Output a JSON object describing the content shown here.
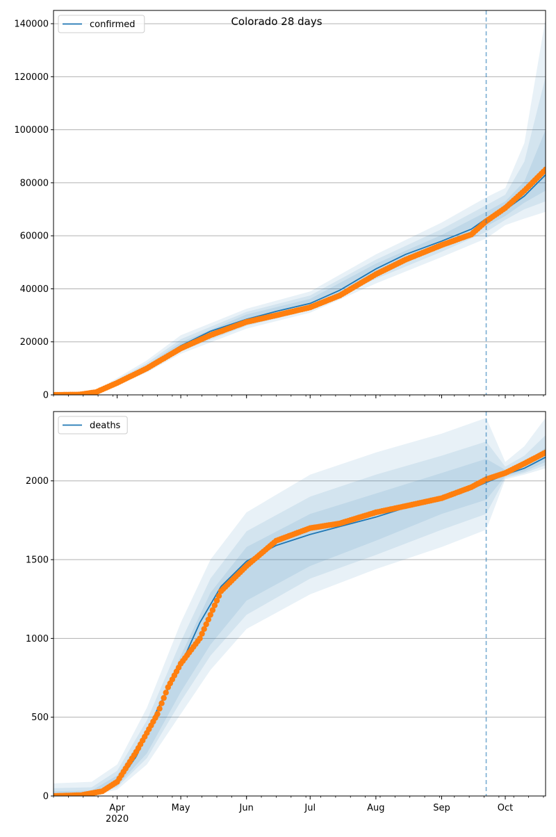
{
  "figure": {
    "title": "Colorado 28 days",
    "forecast_marker_date": "2020-09-22",
    "colors": {
      "model_line": "#1f77b4",
      "observed": "#ff7f0e",
      "band": "#1f77b4",
      "grid": "#b0b0b0"
    }
  },
  "chart_data": [
    {
      "type": "line",
      "panel": "top",
      "legend": "confirmed",
      "legend_placement": "upper-left",
      "grid": "horizontal",
      "ylim": [
        0,
        145000
      ],
      "yticks": [
        0,
        20000,
        40000,
        60000,
        80000,
        100000,
        120000,
        140000
      ],
      "ytick_labels": [
        "0",
        "20000",
        "40000",
        "60000",
        "80000",
        "100000",
        "120000",
        "140000"
      ],
      "xlim": [
        "2020-03-02",
        "2020-10-20"
      ],
      "xtick_dates": [
        "2020-04-01",
        "2020-05-01",
        "2020-06-01",
        "2020-07-01",
        "2020-08-01",
        "2020-09-01",
        "2020-10-01"
      ],
      "series": [
        {
          "name": "confirmed",
          "kind": "model",
          "x": [
            "2020-03-02",
            "2020-03-14",
            "2020-03-22",
            "2020-04-01",
            "2020-04-15",
            "2020-05-01",
            "2020-05-15",
            "2020-06-01",
            "2020-06-15",
            "2020-07-01",
            "2020-07-15",
            "2020-08-01",
            "2020-08-15",
            "2020-09-01",
            "2020-09-15",
            "2020-09-22",
            "2020-10-01",
            "2020-10-10",
            "2020-10-20"
          ],
          "y": [
            0,
            100,
            1000,
            4500,
            10500,
            18500,
            24000,
            28500,
            31500,
            34500,
            39500,
            47500,
            53000,
            58000,
            62500,
            66500,
            69800,
            75000,
            83000
          ]
        },
        {
          "name": "observed",
          "kind": "points",
          "x": [
            "2020-03-02",
            "2020-03-14",
            "2020-03-22",
            "2020-04-01",
            "2020-04-15",
            "2020-05-01",
            "2020-05-15",
            "2020-06-01",
            "2020-06-15",
            "2020-07-01",
            "2020-07-15",
            "2020-08-01",
            "2020-08-15",
            "2020-09-01",
            "2020-09-15",
            "2020-09-22",
            "2020-10-01",
            "2020-10-10",
            "2020-10-20"
          ],
          "y": [
            0,
            100,
            1000,
            4500,
            10000,
            17500,
            22500,
            27500,
            30000,
            33000,
            37500,
            45500,
            51000,
            56500,
            60500,
            65500,
            70500,
            77000,
            85000
          ]
        }
      ],
      "bands": {
        "x": [
          "2020-03-02",
          "2020-03-22",
          "2020-04-15",
          "2020-05-01",
          "2020-06-01",
          "2020-07-01",
          "2020-08-01",
          "2020-09-01",
          "2020-09-22",
          "2020-10-01",
          "2020-10-10",
          "2020-10-20"
        ],
        "levels": [
          {
            "lower": [
              0,
              500,
              8500,
              15500,
              25000,
              31000,
              42000,
              52000,
              59000,
              64000,
              66500,
              69000
            ],
            "upper": [
              200,
              1600,
              13000,
              22500,
              32500,
              39000,
              53000,
              65000,
              74500,
              78000,
              95000,
              142000
            ]
          },
          {
            "lower": [
              0,
              700,
              9300,
              16500,
              26000,
              32000,
              43800,
              54000,
              61500,
              66000,
              70000,
              73000
            ],
            "upper": [
              150,
              1400,
              12000,
              21000,
              31300,
              37500,
              51000,
              62500,
              71500,
              75500,
              88000,
              120000
            ]
          },
          {
            "lower": [
              0,
              850,
              9900,
              17500,
              27000,
              33000,
              45500,
              56000,
              63500,
              67500,
              72500,
              77000
            ],
            "upper": [
              120,
              1200,
              11200,
              19800,
              30300,
              36200,
              49500,
              60300,
              69000,
              73000,
              80500,
              100000
            ]
          }
        ]
      }
    },
    {
      "type": "line",
      "panel": "bottom",
      "legend": "deaths",
      "legend_placement": "upper-left",
      "grid": "horizontal",
      "ylim": [
        0,
        2440
      ],
      "yticks": [
        0,
        500,
        1000,
        1500,
        2000
      ],
      "ytick_labels": [
        "0",
        "500",
        "1000",
        "1500",
        "2000"
      ],
      "xlim": [
        "2020-03-02",
        "2020-10-20"
      ],
      "xtick_dates": [
        "2020-04-01",
        "2020-05-01",
        "2020-06-01",
        "2020-07-01",
        "2020-08-01",
        "2020-09-01",
        "2020-10-01"
      ],
      "xtick_labels": [
        "Apr",
        "May",
        "Jun",
        "Jul",
        "Aug",
        "Sep",
        "Oct"
      ],
      "xtick_sublabels": [
        "2020",
        "",
        "",
        "",
        "",
        "",
        ""
      ],
      "series": [
        {
          "name": "deaths",
          "kind": "model",
          "x": [
            "2020-03-02",
            "2020-03-15",
            "2020-03-25",
            "2020-04-01",
            "2020-04-10",
            "2020-04-20",
            "2020-05-01",
            "2020-05-10",
            "2020-05-20",
            "2020-06-01",
            "2020-06-15",
            "2020-07-01",
            "2020-07-15",
            "2020-08-01",
            "2020-08-15",
            "2020-09-01",
            "2020-09-15",
            "2020-09-22",
            "2020-10-01",
            "2020-10-10",
            "2020-10-20"
          ],
          "y": [
            0,
            5,
            20,
            80,
            250,
            550,
            830,
            1100,
            1330,
            1490,
            1590,
            1660,
            1710,
            1770,
            1830,
            1890,
            1950,
            1990,
            2040,
            2080,
            2150
          ]
        },
        {
          "name": "observed",
          "kind": "points",
          "x": [
            "2020-03-02",
            "2020-03-15",
            "2020-03-25",
            "2020-04-01",
            "2020-04-10",
            "2020-04-20",
            "2020-04-25",
            "2020-05-01",
            "2020-05-10",
            "2020-05-20",
            "2020-06-01",
            "2020-06-15",
            "2020-07-01",
            "2020-07-15",
            "2020-08-01",
            "2020-08-15",
            "2020-09-01",
            "2020-09-15",
            "2020-09-22",
            "2020-10-01",
            "2020-10-10",
            "2020-10-20"
          ],
          "y": [
            0,
            5,
            30,
            90,
            280,
            520,
            690,
            840,
            1000,
            1300,
            1460,
            1620,
            1700,
            1730,
            1800,
            1840,
            1890,
            1960,
            2010,
            2050,
            2110,
            2180
          ]
        }
      ],
      "bands": {
        "x": [
          "2020-03-02",
          "2020-03-20",
          "2020-04-01",
          "2020-04-15",
          "2020-05-01",
          "2020-05-15",
          "2020-06-01",
          "2020-07-01",
          "2020-08-01",
          "2020-09-01",
          "2020-09-22",
          "2020-10-01",
          "2020-10-10",
          "2020-10-20"
        ],
        "levels": [
          {
            "lower": [
              0,
              5,
              40,
              200,
              520,
              800,
              1060,
              1280,
              1440,
              1580,
              1690,
              2010,
              2040,
              2080
            ],
            "upper": [
              80,
              90,
              200,
              560,
              1100,
              1500,
              1800,
              2040,
              2180,
              2300,
              2400,
              2120,
              2220,
              2400
            ]
          },
          {
            "lower": [
              0,
              8,
              55,
              240,
              600,
              890,
              1150,
              1380,
              1530,
              1690,
              1790,
              2020,
              2050,
              2100
            ],
            "upper": [
              50,
              55,
              160,
              480,
              980,
              1380,
              1680,
              1900,
              2040,
              2160,
              2250,
              2090,
              2160,
              2290
            ]
          },
          {
            "lower": [
              0,
              10,
              65,
              270,
              660,
              960,
              1240,
              1460,
              1620,
              1790,
              1880,
              2030,
              2060,
              2120
            ],
            "upper": [
              30,
              35,
              130,
              420,
              890,
              1290,
              1580,
              1790,
              1920,
              2050,
              2140,
              2070,
              2120,
              2210
            ]
          }
        ]
      }
    }
  ]
}
